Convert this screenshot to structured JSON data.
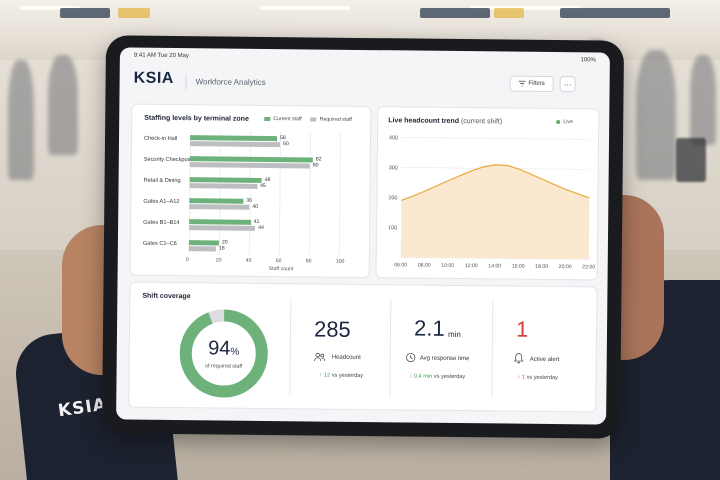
{
  "tablet": {
    "status": {
      "time": "9:41 AM Tue 20 May",
      "battery": "100%"
    },
    "app": {
      "logo": "KSIA",
      "title": "Workforce Analytics",
      "filters_label": "Filters",
      "more_label": "···"
    }
  },
  "staffing": {
    "title": "Staffing levels by terminal zone",
    "legend_current": "Current staff",
    "legend_required": "Required staff",
    "xlabel": "Staff count"
  },
  "headcount_trend": {
    "title": "Live headcount trend",
    "subtitle": "(current shift)",
    "live_label": "Live"
  },
  "coverage": {
    "title": "Shift coverage",
    "percent": 94,
    "percent_text": "94",
    "percent_sign": "%",
    "caption": "of required staff"
  },
  "kpis": {
    "headcount": {
      "value": "285",
      "label": "Headcount",
      "delta": "12",
      "delta_suffix": "vs yesterday"
    },
    "response": {
      "value": "2.1",
      "unit": "min",
      "label": "Avg response time",
      "delta": "0.4 min",
      "delta_suffix": "vs yesterday"
    },
    "alerts": {
      "value": "1",
      "label": "Active alert",
      "delta": "1",
      "delta_suffix": "vs yesterday"
    }
  },
  "colors": {
    "current": "#6db27a",
    "required": "#bdbec2",
    "line": "#e9a93c",
    "area": "#fbe9cf",
    "alert": "#c94141",
    "navy": "#1b2742"
  },
  "sleeve_logo": "KSIA",
  "chart_data": [
    {
      "type": "bar",
      "title": "Staffing levels by terminal zone",
      "xlabel": "Staff count",
      "categories": [
        "Check-in Hall",
        "Security Checkpoint",
        "Retail & Dining",
        "Gates A1–A12",
        "Gates B1–B14",
        "Gates C1–C6"
      ],
      "series": [
        {
          "name": "Current staff",
          "values": [
            58,
            82,
            48,
            36,
            41,
            20
          ]
        },
        {
          "name": "Required staff",
          "values": [
            60,
            80,
            45,
            40,
            44,
            18
          ]
        }
      ],
      "xlim": [
        0,
        100
      ],
      "xticks": [
        0,
        20,
        40,
        60,
        80,
        100
      ],
      "legend": "top-right"
    },
    {
      "type": "area",
      "title": "Live headcount trend (current shift)",
      "x": [
        "06:00",
        "07:00",
        "08:00",
        "09:00",
        "10:00",
        "11:00",
        "12:00",
        "13:00",
        "14:00",
        "15:00",
        "16:00",
        "17:00",
        "18:00",
        "19:00",
        "20:00",
        "21:00",
        "22:00"
      ],
      "xticks": [
        "06:00",
        "08:00",
        "10:00",
        "12:00",
        "14:00",
        "16:00",
        "18:00",
        "20:00",
        "22:00"
      ],
      "values": [
        190,
        205,
        222,
        240,
        258,
        275,
        292,
        305,
        312,
        310,
        298,
        282,
        265,
        248,
        232,
        218,
        205
      ],
      "ylim": [
        0,
        400
      ],
      "yticks": [
        0,
        100,
        200,
        300,
        400
      ],
      "grid": true
    }
  ]
}
